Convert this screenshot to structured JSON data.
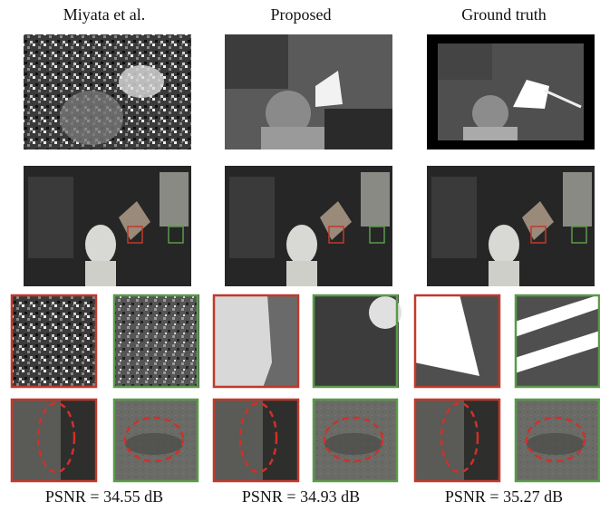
{
  "columns": [
    {
      "title": "Miyata et al.",
      "psnr": "PSNR = 34.55 dB"
    },
    {
      "title": "Proposed",
      "psnr": "PSNR = 34.93 dB"
    },
    {
      "title": "Ground truth",
      "psnr": "PSNR = 35.27 dB"
    }
  ]
}
